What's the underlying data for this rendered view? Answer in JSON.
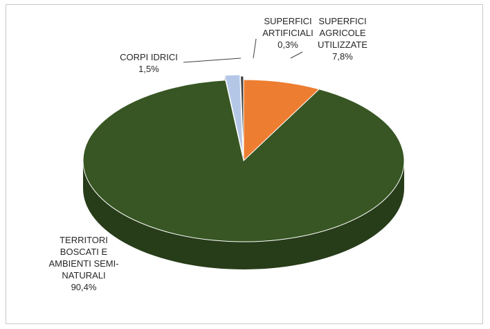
{
  "chart_data": {
    "type": "pie",
    "title": "",
    "slices": [
      {
        "label": [
          "SUPERFICI",
          "AGRICOLE",
          "UTILIZZATE"
        ],
        "value": 7.8,
        "value_label": "7,8%",
        "color": "#ed7d31"
      },
      {
        "label": [
          "TERRITORI",
          "BOSCATI E",
          "AMBIENTI SEMI-",
          "NATURALI"
        ],
        "value": 90.4,
        "value_label": "90,4%",
        "color": "#375623"
      },
      {
        "label": [
          "CORPI IDRICI"
        ],
        "value": 1.5,
        "value_label": "1,5%",
        "color": "#b4c7e7"
      },
      {
        "label": [
          "SUPERFICI",
          "ARTIFICIALI"
        ],
        "value": 0.3,
        "value_label": "0,3%",
        "color": "#404040"
      }
    ],
    "legend": "none",
    "style": "3d-exploded"
  }
}
